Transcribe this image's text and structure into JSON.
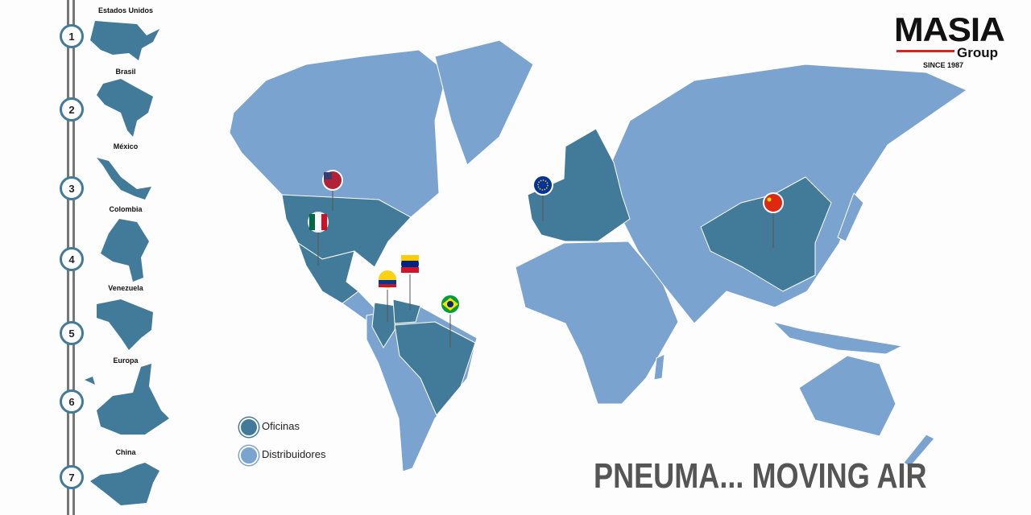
{
  "brand": {
    "name": "MASIA",
    "sub": "Group",
    "since": "SINCE 1987",
    "accent": "#d9231d"
  },
  "colors": {
    "offices": "#427b99",
    "distributors": "#7ba3cf"
  },
  "timeline": [
    {
      "num": "1",
      "country": "Estados Unidos"
    },
    {
      "num": "2",
      "country": "Brasil"
    },
    {
      "num": "3",
      "country": "México"
    },
    {
      "num": "4",
      "country": "Colombia"
    },
    {
      "num": "5",
      "country": "Venezuela"
    },
    {
      "num": "6",
      "country": "Europa"
    },
    {
      "num": "7",
      "country": "China"
    }
  ],
  "legend": {
    "offices": "Oficinas",
    "distributors": "Distribuidores"
  },
  "pins": [
    "flag-usa",
    "flag-mexico",
    "flag-colombia",
    "flag-venezuela",
    "flag-brazil",
    "flag-eu",
    "flag-china"
  ],
  "tagline": "PNEUMA... MOVING AIR"
}
